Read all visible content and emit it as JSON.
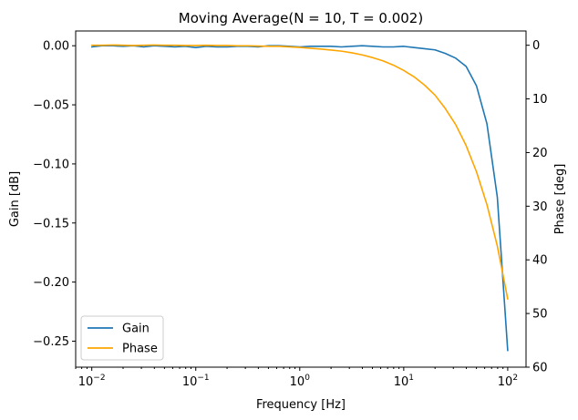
{
  "chart_data": {
    "type": "line",
    "title": "Moving Average(N = 10, T = 0.002)",
    "xlabel": "Frequency [Hz]",
    "ylabel_left": "Gain [dB]",
    "ylabel_right": "Phase [deg]",
    "xscale": "log",
    "xlim": [
      0.007,
      150
    ],
    "ylim_left": [
      -0.272,
      0.0125
    ],
    "ylim_right": [
      60,
      -2.66
    ],
    "x_ticks": [
      "10^-2",
      "10^-1",
      "10^0",
      "10^1",
      "10^2"
    ],
    "y_left_ticks": [
      "0.00",
      "−0.05",
      "−0.10",
      "−0.15",
      "−0.20",
      "−0.25"
    ],
    "y_right_ticks": [
      "0",
      "10",
      "20",
      "30",
      "40",
      "50",
      "60"
    ],
    "legend_position": "lower-left",
    "grid": false,
    "series": [
      {
        "name": "Gain",
        "axis": "left",
        "color": "#1f77b4",
        "x": [
          0.01,
          0.0126,
          0.0158,
          0.02,
          0.0251,
          0.0316,
          0.0398,
          0.0501,
          0.0631,
          0.0794,
          0.1,
          0.126,
          0.158,
          0.2,
          0.251,
          0.316,
          0.398,
          0.501,
          0.631,
          0.794,
          1.0,
          1.26,
          1.58,
          2.0,
          2.51,
          3.16,
          3.98,
          5.01,
          6.31,
          7.94,
          10.0,
          12.6,
          15.8,
          20.0,
          25.1,
          31.6,
          39.8,
          50.1,
          63.1,
          79.4,
          100.0
        ],
        "y": [
          -0.001,
          0.0,
          0.0,
          -0.0005,
          0.0,
          -0.001,
          0.0,
          -0.0005,
          -0.001,
          -0.0005,
          -0.0015,
          -0.0005,
          -0.001,
          -0.001,
          -0.0005,
          -0.0005,
          -0.001,
          0.0,
          0.0,
          -0.0005,
          -0.001,
          -0.0005,
          -0.0005,
          -0.0005,
          -0.001,
          -0.0005,
          0.0,
          -0.0005,
          -0.001,
          -0.001,
          -0.0005,
          -0.0015,
          -0.0025,
          -0.0035,
          -0.0065,
          -0.0105,
          -0.0175,
          -0.034,
          -0.066,
          -0.128,
          -0.258
        ]
      },
      {
        "name": "Phase",
        "axis": "right",
        "color": "#ffa500",
        "x": [
          0.01,
          0.0126,
          0.0158,
          0.02,
          0.0251,
          0.0316,
          0.0398,
          0.0501,
          0.0631,
          0.0794,
          0.1,
          0.126,
          0.158,
          0.2,
          0.251,
          0.316,
          0.398,
          0.501,
          0.631,
          0.794,
          1.0,
          1.26,
          1.58,
          2.0,
          2.51,
          3.16,
          3.98,
          5.01,
          6.31,
          7.94,
          10.0,
          12.6,
          15.8,
          20.0,
          25.1,
          31.6,
          39.8,
          50.1,
          63.1,
          79.4,
          100.0
        ],
        "y": [
          0.0,
          0.0,
          -0.05,
          0.0,
          0.05,
          0.0,
          -0.05,
          0.0,
          0.0,
          0.05,
          0.05,
          0.0,
          0.05,
          0.05,
          0.1,
          0.1,
          0.15,
          0.2,
          0.2,
          0.3,
          0.4,
          0.55,
          0.7,
          0.9,
          1.1,
          1.4,
          1.8,
          2.3,
          2.9,
          3.7,
          4.7,
          5.9,
          7.4,
          9.3,
          11.8,
          14.8,
          18.7,
          23.6,
          29.7,
          37.4,
          47.3
        ]
      }
    ]
  }
}
